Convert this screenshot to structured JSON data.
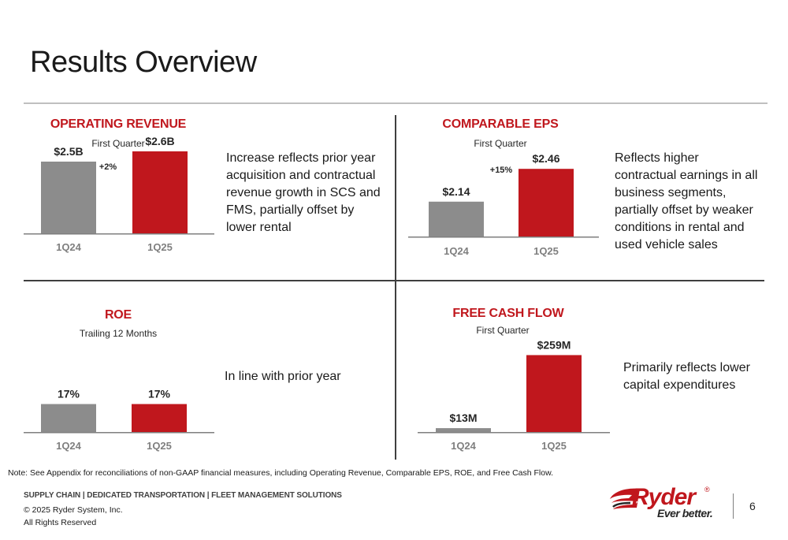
{
  "slide": {
    "title": "Results Overview",
    "page_number": "6",
    "note": "Note: See Appendix for reconciliations of non-GAAP financial measures, including Operating Revenue, Comparable EPS, ROE, and Free Cash Flow.",
    "tagline": "SUPPLY CHAIN | DEDICATED TRANSPORTATION | FLEET MANAGEMENT SOLUTIONS",
    "copyright": "© 2025 Ryder System, Inc.",
    "rights": "All Rights Reserved",
    "logo": {
      "brand": "Ryder",
      "trademark": "®",
      "slogan": "Ever better.",
      "icon": "ryder-swoosh-icon"
    }
  },
  "colors": {
    "accent_red": "#c0171d",
    "gray_bar": "#8c8c8c",
    "dark_text": "#262626"
  },
  "panels": {
    "revenue": {
      "title": "OPERATING REVENUE",
      "subtitle": "First Quarter",
      "description": "Increase reflects prior year acquisition and contractual revenue growth in SCS and FMS, partially offset by lower rental"
    },
    "eps": {
      "title": "COMPARABLE EPS",
      "subtitle": "First Quarter",
      "description": "Reflects higher contractual earnings in all business segments, partially offset by weaker conditions in rental and used vehicle sales"
    },
    "roe": {
      "title": "ROE",
      "subtitle": "Trailing 12 Months",
      "description": "In line with prior year"
    },
    "fcf": {
      "title": "FREE CASH FLOW",
      "subtitle": "First Quarter",
      "description": "Primarily reflects lower capital expenditures"
    }
  },
  "chart_data": [
    {
      "id": "revenue",
      "type": "bar",
      "title": "OPERATING REVENUE",
      "subtitle": "First Quarter",
      "categories": [
        "1Q24",
        "1Q25"
      ],
      "values": [
        2.5,
        2.6
      ],
      "labels": [
        "$2.5B",
        "$2.6B"
      ],
      "change": "+2%",
      "unit": "$B",
      "ylim": [
        1.8,
        2.8
      ]
    },
    {
      "id": "eps",
      "type": "bar",
      "title": "COMPARABLE EPS",
      "subtitle": "First Quarter",
      "categories": [
        "1Q24",
        "1Q25"
      ],
      "values": [
        2.14,
        2.46
      ],
      "labels": [
        "$2.14",
        "$2.46"
      ],
      "change": "+15%",
      "unit": "$",
      "ylim": [
        1.8,
        2.8
      ]
    },
    {
      "id": "roe",
      "type": "bar",
      "title": "ROE",
      "subtitle": "Trailing 12 Months",
      "categories": [
        "1Q24",
        "1Q25"
      ],
      "values": [
        17,
        17
      ],
      "labels": [
        "17%",
        "17%"
      ],
      "change": "",
      "unit": "%",
      "ylim": [
        12.5,
        29
      ]
    },
    {
      "id": "fcf",
      "type": "bar",
      "title": "FREE CASH FLOW",
      "subtitle": "First Quarter",
      "categories": [
        "1Q24",
        "1Q25"
      ],
      "values": [
        13,
        259
      ],
      "labels": [
        "$13M",
        "$259M"
      ],
      "change": "",
      "unit": "$M",
      "ylim": [
        0,
        300
      ]
    }
  ]
}
